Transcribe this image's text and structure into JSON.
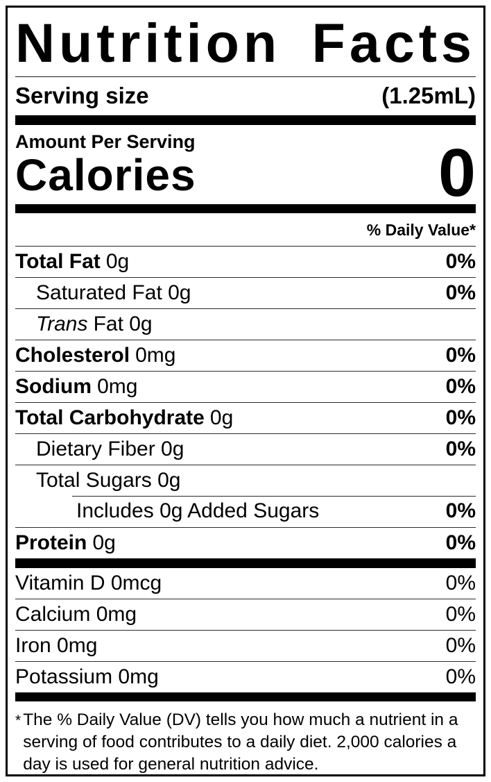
{
  "nutrition_label": {
    "title_words": [
      "Nutrition",
      "Facts"
    ],
    "serving_size": {
      "label": "Serving size",
      "value": "(1.25mL)"
    },
    "amount_per_serving_label": "Amount Per Serving",
    "calories": {
      "label": "Calories",
      "value": "0"
    },
    "daily_value_header": "% Daily Value*",
    "nutrient_rows": [
      {
        "bold_name": "Total Fat",
        "rest": "0g",
        "dv": "0%"
      },
      {
        "rest": "Saturated Fat 0g",
        "dv": "0%"
      },
      {
        "italic_name": "Trans",
        "rest": "Fat 0g",
        "dv": ""
      },
      {
        "bold_name": "Cholesterol",
        "rest": "0mg",
        "dv": "0%"
      },
      {
        "bold_name": "Sodium",
        "rest": "0mg",
        "dv": "0%"
      },
      {
        "bold_name": "Total Carbohydrate",
        "rest": "0g",
        "dv": "0%"
      },
      {
        "rest": "Dietary Fiber 0g",
        "dv": "0%"
      },
      {
        "rest": "Total Sugars 0g",
        "dv": ""
      },
      {
        "rest": "Includes 0g Added Sugars",
        "dv": "0%"
      },
      {
        "bold_name": "Protein",
        "rest": "0g",
        "dv": "0%"
      }
    ],
    "micronutrient_rows": [
      {
        "text": "Vitamin D 0mcg",
        "dv": "0%"
      },
      {
        "text": "Calcium 0mg",
        "dv": "0%"
      },
      {
        "text": "Iron 0mg",
        "dv": "0%"
      },
      {
        "text": "Potassium 0mg",
        "dv": "0%"
      }
    ],
    "footnote": {
      "asterisk": "*",
      "text": "The % Daily Value (DV) tells you how much a nutrient in a serving of food contributes to a daily diet. 2,000 calories a day is used for general nutrition advice."
    },
    "colors": {
      "text": "#000000",
      "background": "#ffffff",
      "border": "#000000"
    }
  }
}
